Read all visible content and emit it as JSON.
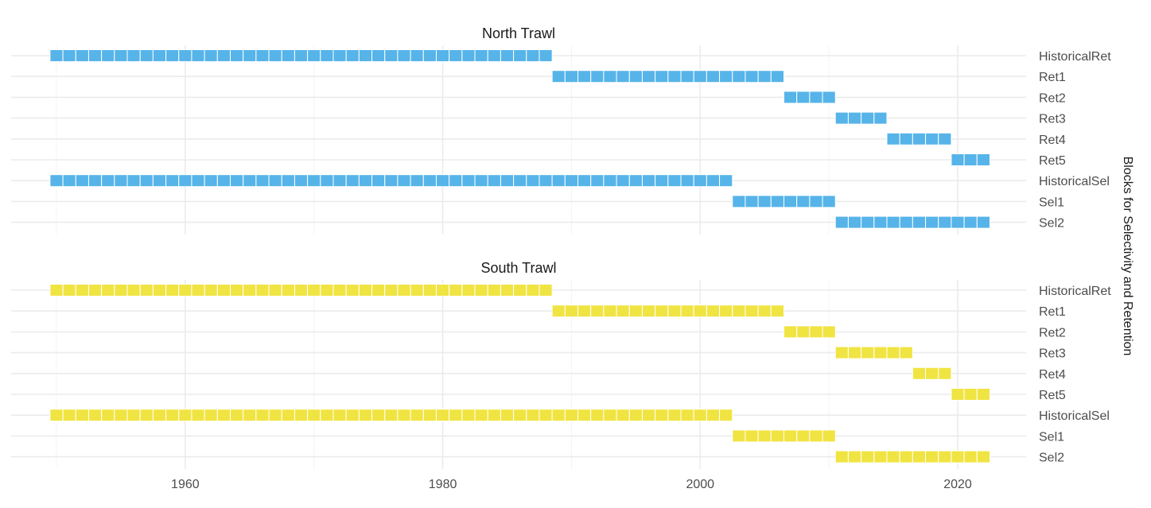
{
  "chart_data": {
    "type": "heatmap",
    "subtype": "faceted-tile",
    "x_ticks": [
      1960,
      1980,
      2000,
      2020
    ],
    "xlim": [
      1949.5,
      2022.5
    ],
    "ylabel": "Blocks for Selectivity and Retention",
    "categories": [
      "HistoricalRet",
      "Ret1",
      "Ret2",
      "Ret3",
      "Ret4",
      "Ret5",
      "HistoricalSel",
      "Sel1",
      "Sel2"
    ],
    "panels": [
      {
        "title": "North Trawl",
        "color": "#56B4E9",
        "rows": [
          {
            "block": "HistoricalRet",
            "start": 1950,
            "end": 1988
          },
          {
            "block": "Ret1",
            "start": 1989,
            "end": 2006
          },
          {
            "block": "Ret2",
            "start": 2007,
            "end": 2010
          },
          {
            "block": "Ret3",
            "start": 2011,
            "end": 2014
          },
          {
            "block": "Ret4",
            "start": 2015,
            "end": 2019
          },
          {
            "block": "Ret5",
            "start": 2020,
            "end": 2022
          },
          {
            "block": "HistoricalSel",
            "start": 1950,
            "end": 2002
          },
          {
            "block": "Sel1",
            "start": 2003,
            "end": 2010
          },
          {
            "block": "Sel2",
            "start": 2011,
            "end": 2022
          }
        ]
      },
      {
        "title": "South Trawl",
        "color": "#F0E442",
        "rows": [
          {
            "block": "HistoricalRet",
            "start": 1950,
            "end": 1988
          },
          {
            "block": "Ret1",
            "start": 1989,
            "end": 2006
          },
          {
            "block": "Ret2",
            "start": 2007,
            "end": 2010
          },
          {
            "block": "Ret3",
            "start": 2011,
            "end": 2016
          },
          {
            "block": "Ret4",
            "start": 2017,
            "end": 2019
          },
          {
            "block": "Ret5",
            "start": 2020,
            "end": 2022
          },
          {
            "block": "HistoricalSel",
            "start": 1950,
            "end": 2002
          },
          {
            "block": "Sel1",
            "start": 2003,
            "end": 2010
          },
          {
            "block": "Sel2",
            "start": 2011,
            "end": 2022
          }
        ]
      }
    ]
  }
}
